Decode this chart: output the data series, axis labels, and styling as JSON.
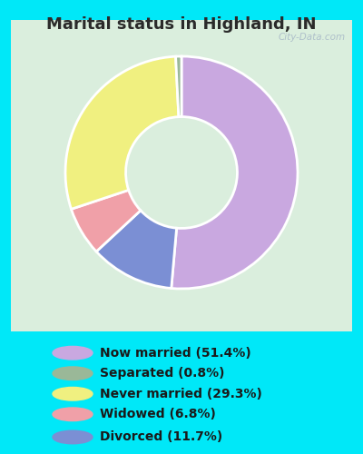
{
  "title": "Marital status in Highland, IN",
  "slices": [
    51.4,
    11.7,
    6.8,
    29.3,
    0.8
  ],
  "labels_legend": [
    "Now married (51.4%)",
    "Separated (0.8%)",
    "Never married (29.3%)",
    "Widowed (6.8%)",
    "Divorced (11.7%)"
  ],
  "colors_pie": [
    "#c9a8e0",
    "#7b8fd4",
    "#f0a0a8",
    "#f0f080",
    "#9ab898"
  ],
  "colors_legend": [
    "#c9a8e0",
    "#9ab898",
    "#f0f080",
    "#f0a0a8",
    "#7b8fd4"
  ],
  "start_angle": 90,
  "title_fontsize": 13,
  "legend_fontsize": 10,
  "bg_outer": "#00e8f8",
  "bg_chart_top": "#e8f5e8",
  "bg_chart_bottom": "#d0ede0",
  "watermark": "City-Data.com"
}
